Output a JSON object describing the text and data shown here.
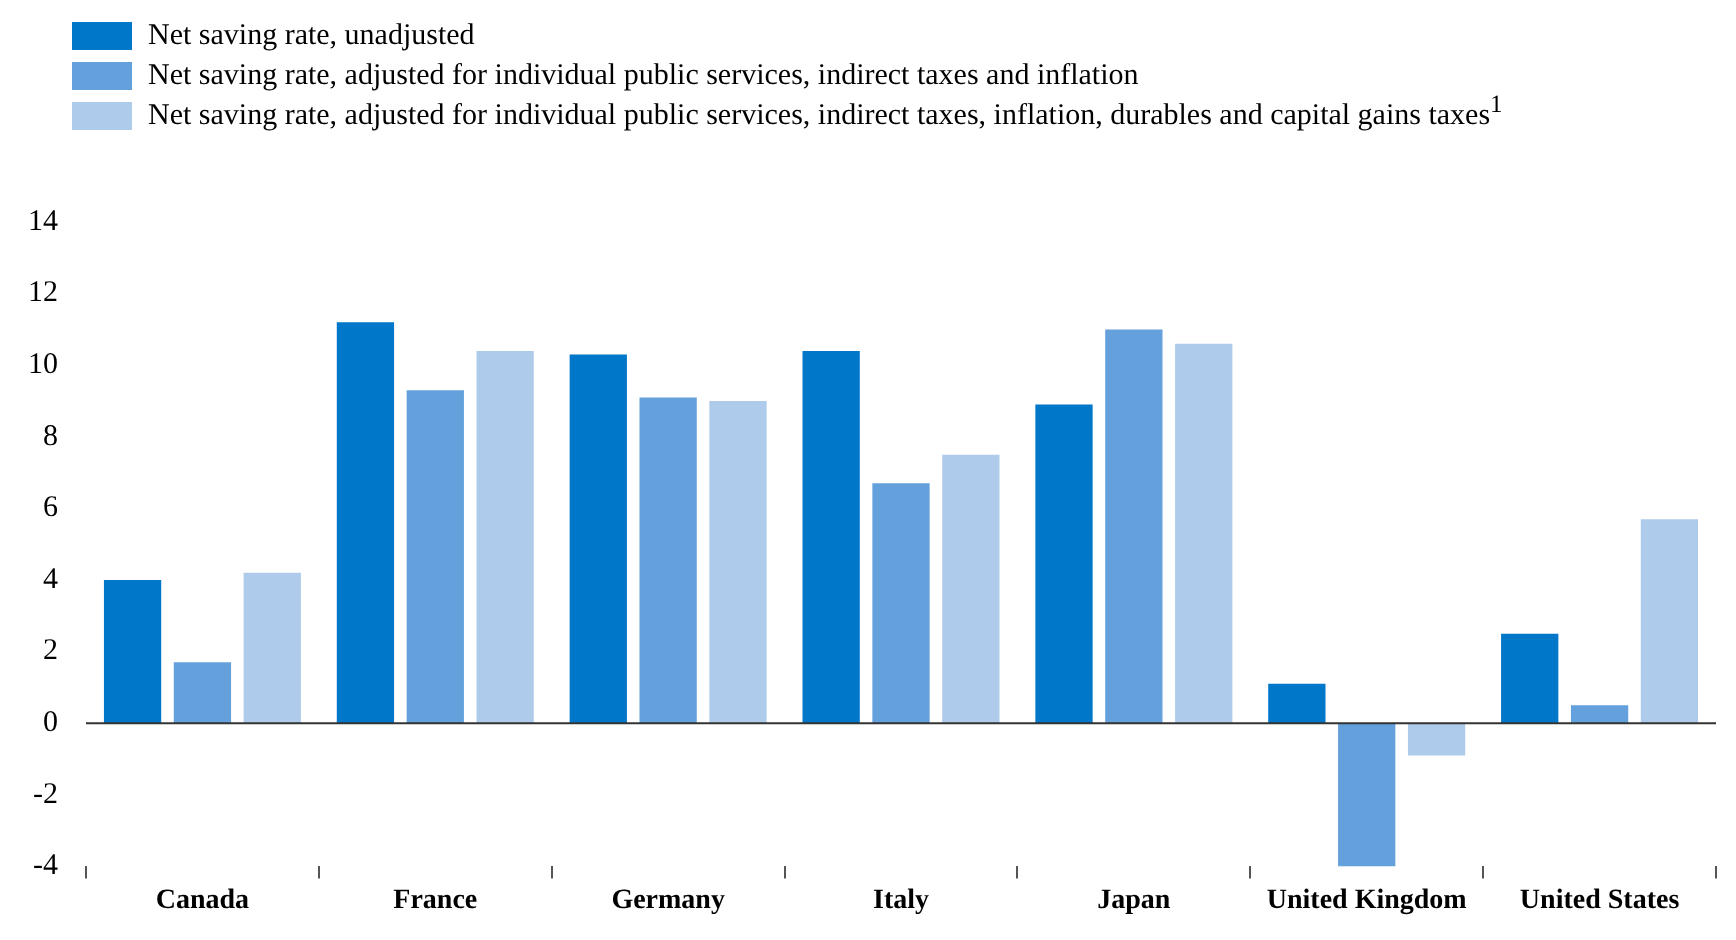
{
  "chart_data": {
    "type": "bar",
    "categories": [
      "Canada",
      "France",
      "Germany",
      "Italy",
      "Japan",
      "United Kingdom",
      "United States"
    ],
    "series": [
      {
        "name": "Net saving rate, unadjusted",
        "color": "#0077c8",
        "values": [
          4.0,
          11.2,
          10.3,
          10.4,
          8.9,
          1.1,
          2.5
        ]
      },
      {
        "name": "Net saving rate, adjusted for individual public services, indirect taxes and inflation",
        "color": "#64a0dc",
        "values": [
          1.7,
          9.3,
          9.1,
          6.7,
          11.0,
          -4.0,
          0.5
        ]
      },
      {
        "name": "Net saving rate, adjusted for individual public services, indirect taxes, inflation, durables and capital gains taxes$^{1}$",
        "color": "#afcbeb",
        "values": [
          4.2,
          10.4,
          9.0,
          7.5,
          10.6,
          -0.9,
          5.7
        ]
      }
    ],
    "ylim": [
      -4,
      14
    ],
    "yticks": [
      -4,
      -2,
      0,
      2,
      4,
      6,
      8,
      10,
      12,
      14
    ],
    "grid": false,
    "ref_lines": [
      {
        "axis": "y",
        "value": 0,
        "color": "#333333"
      }
    ],
    "legend": "top left"
  }
}
